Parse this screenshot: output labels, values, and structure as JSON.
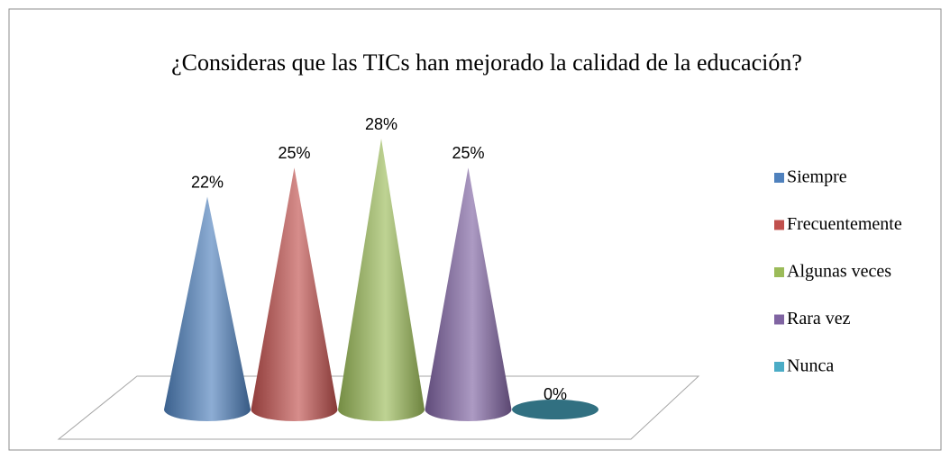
{
  "chart_data": {
    "type": "cone",
    "title": "¿Consideras que las TICs han mejorado la calidad de la educación?",
    "categories": [
      "Siempre",
      "Frecuentemente",
      "Algunas veces",
      "Rara vez",
      "Nunca"
    ],
    "values": [
      22,
      25,
      28,
      25,
      0
    ],
    "value_labels": [
      "22%",
      "25%",
      "28%",
      "25%",
      "0%"
    ],
    "colors": [
      "#4f81bd",
      "#c0504d",
      "#9bbb59",
      "#8064a2",
      "#4bacc6"
    ],
    "legend": "right"
  }
}
